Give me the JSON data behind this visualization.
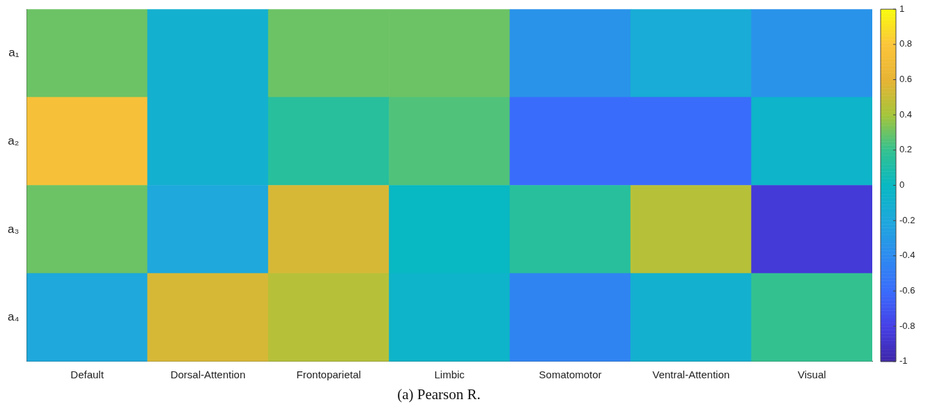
{
  "chart_data": {
    "type": "heatmap",
    "title": "(a) Pearson R.",
    "categories": [
      "Default",
      "Dorsal-Attention",
      "Frontoparietal",
      "Limbic",
      "Somatomotor",
      "Ventral-Attention",
      "Visual"
    ],
    "y_categories": [
      "a₁",
      "a₂",
      "a₃",
      "a₄"
    ],
    "cells": [
      [
        0.3,
        -0.1,
        0.3,
        0.3,
        -0.35,
        -0.15,
        -0.35
      ],
      [
        0.75,
        -0.1,
        0.15,
        0.25,
        -0.6,
        -0.6,
        -0.05
      ],
      [
        0.3,
        -0.2,
        0.55,
        0,
        0.15,
        0.45,
        -0.85
      ],
      [
        -0.2,
        0.55,
        0.45,
        -0.05,
        -0.45,
        -0.1,
        0.2
      ]
    ],
    "clim": [
      -1,
      1
    ],
    "cticks": [
      -1,
      -0.8,
      -0.6,
      -0.4,
      -0.2,
      0,
      0.2,
      0.4,
      0.6,
      0.8,
      1
    ]
  }
}
